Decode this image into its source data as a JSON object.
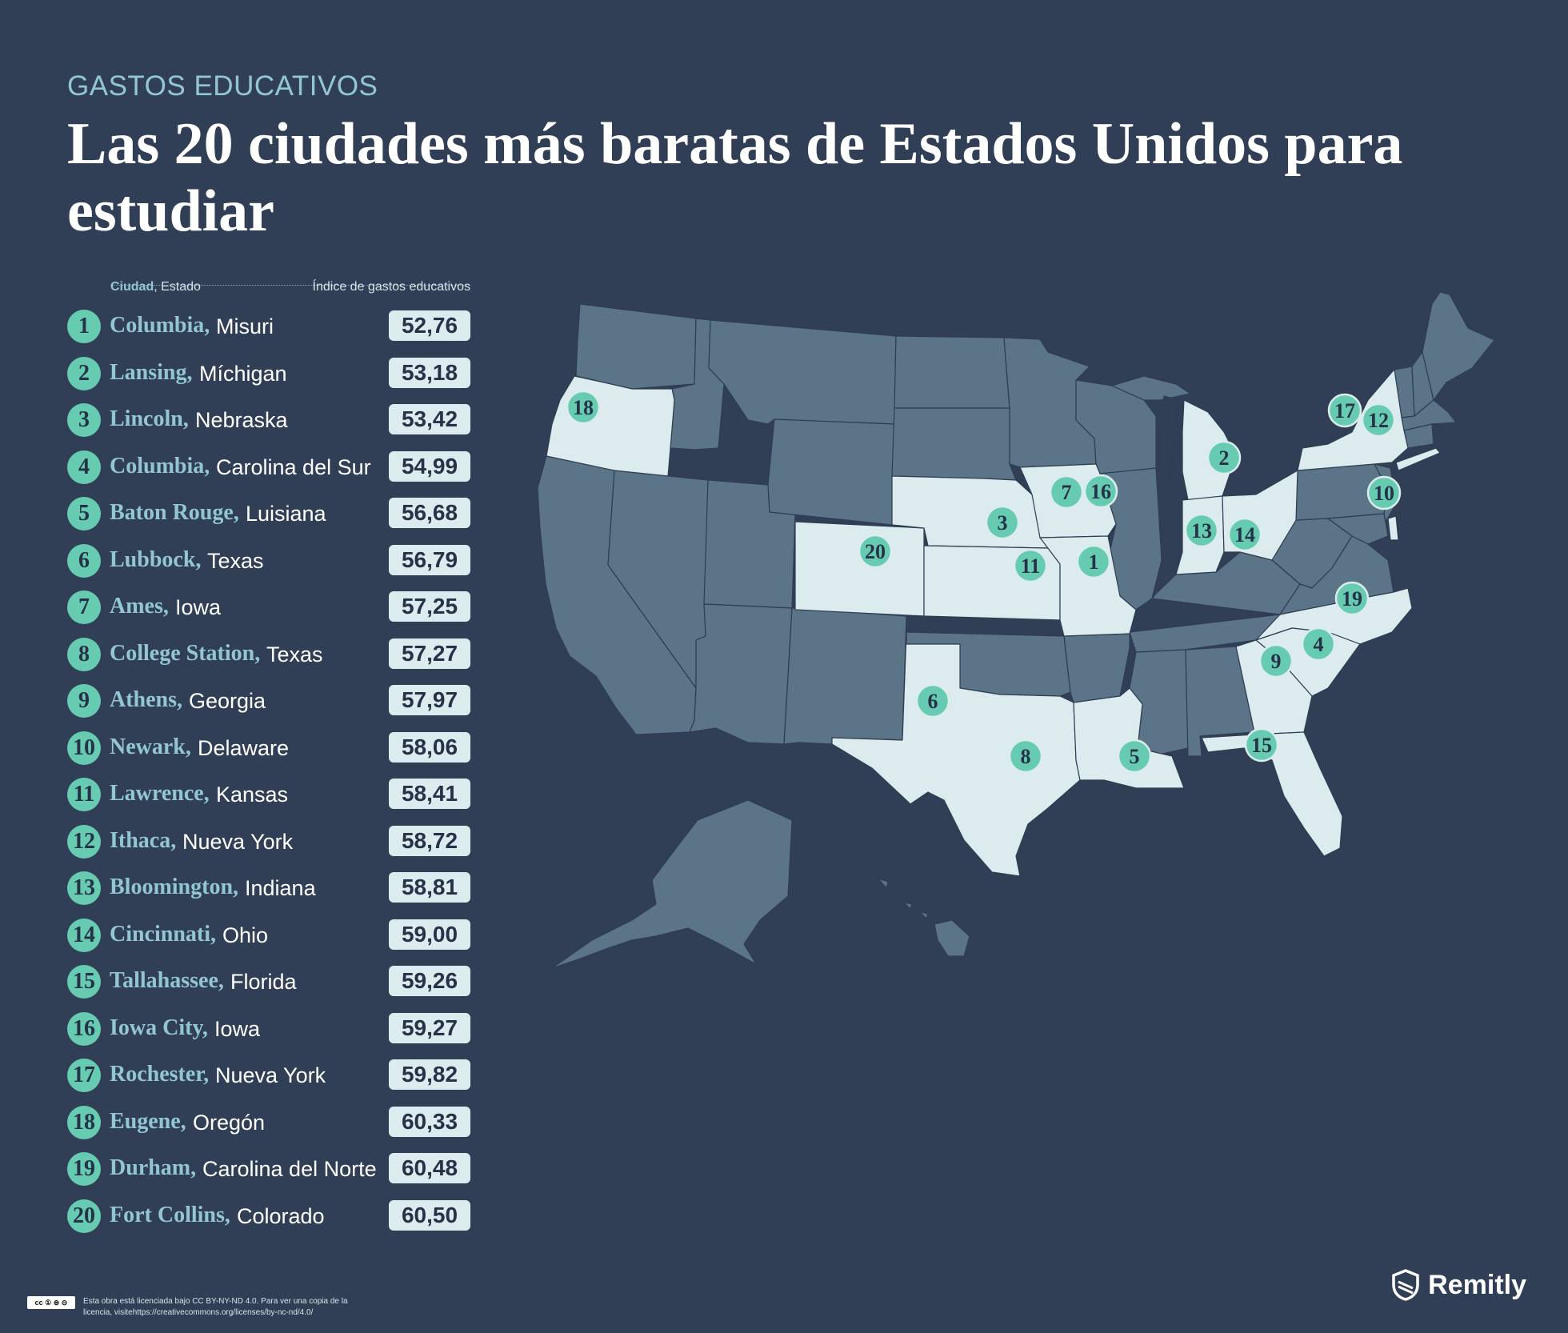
{
  "header": {
    "kicker": "GASTOS EDUCATIVOS",
    "title": "Las 20 ciudades más baratas de Estados Unidos para estudiar"
  },
  "table": {
    "header_city": "Ciudad",
    "header_state": ", Estado",
    "header_index": "Índice de gastos educativos",
    "rows": [
      {
        "rank": "1",
        "city": "Columbia,",
        "state": "Misuri",
        "score": "52,76"
      },
      {
        "rank": "2",
        "city": "Lansing,",
        "state": "Míchigan",
        "score": "53,18"
      },
      {
        "rank": "3",
        "city": "Lincoln,",
        "state": "Nebraska",
        "score": "53,42"
      },
      {
        "rank": "4",
        "city": "Columbia,",
        "state": "Carolina del Sur",
        "score": "54,99"
      },
      {
        "rank": "5",
        "city": "Baton Rouge,",
        "state": "Luisiana",
        "score": "56,68"
      },
      {
        "rank": "6",
        "city": "Lubbock,",
        "state": "Texas",
        "score": "56,79"
      },
      {
        "rank": "7",
        "city": "Ames,",
        "state": "Iowa",
        "score": "57,25"
      },
      {
        "rank": "8",
        "city": "College Station,",
        "state": "Texas",
        "score": "57,27"
      },
      {
        "rank": "9",
        "city": "Athens,",
        "state": "Georgia",
        "score": "57,97"
      },
      {
        "rank": "10",
        "city": "Newark,",
        "state": "Delaware",
        "score": "58,06"
      },
      {
        "rank": "11",
        "city": "Lawrence,",
        "state": "Kansas",
        "score": "58,41"
      },
      {
        "rank": "12",
        "city": "Ithaca,",
        "state": "Nueva York",
        "score": "58,72"
      },
      {
        "rank": "13",
        "city": "Bloomington,",
        "state": "Indiana",
        "score": "58,81"
      },
      {
        "rank": "14",
        "city": "Cincinnati,",
        "state": "Ohio",
        "score": "59,00"
      },
      {
        "rank": "15",
        "city": "Tallahassee,",
        "state": "Florida",
        "score": "59,26"
      },
      {
        "rank": "16",
        "city": "Iowa City,",
        "state": "Iowa",
        "score": "59,27"
      },
      {
        "rank": "17",
        "city": "Rochester,",
        "state": "Nueva York",
        "score": "59,82"
      },
      {
        "rank": "18",
        "city": "Eugene,",
        "state": "Oregón",
        "score": "60,33"
      },
      {
        "rank": "19",
        "city": "Durham,",
        "state": "Carolina del Norte",
        "score": "60,48"
      },
      {
        "rank": "20",
        "city": "Fort Collins,",
        "state": "Colorado",
        "score": "60,50"
      }
    ]
  },
  "map": {
    "markers": [
      "1",
      "2",
      "3",
      "4",
      "5",
      "6",
      "7",
      "8",
      "9",
      "10",
      "11",
      "12",
      "13",
      "14",
      "15",
      "16",
      "17",
      "18",
      "19",
      "20"
    ]
  },
  "colors": {
    "background": "#313f56",
    "state_default": "#5b7487",
    "state_highlight": "#dcecee",
    "marker": "#66cbb1",
    "accent_text": "#93c7cf"
  },
  "footer": {
    "cc_badge": "cc ① ⊜ ⊝",
    "license_text": "Esta obra está licenciada bajo CC BY-NY-ND 4.0. Para ver una copia de la licencia, visitehttps://creativecommons.org/licenses/by-nc-nd/4.0/",
    "brand": "Remitly",
    "brand_icon": "shield-logo"
  }
}
